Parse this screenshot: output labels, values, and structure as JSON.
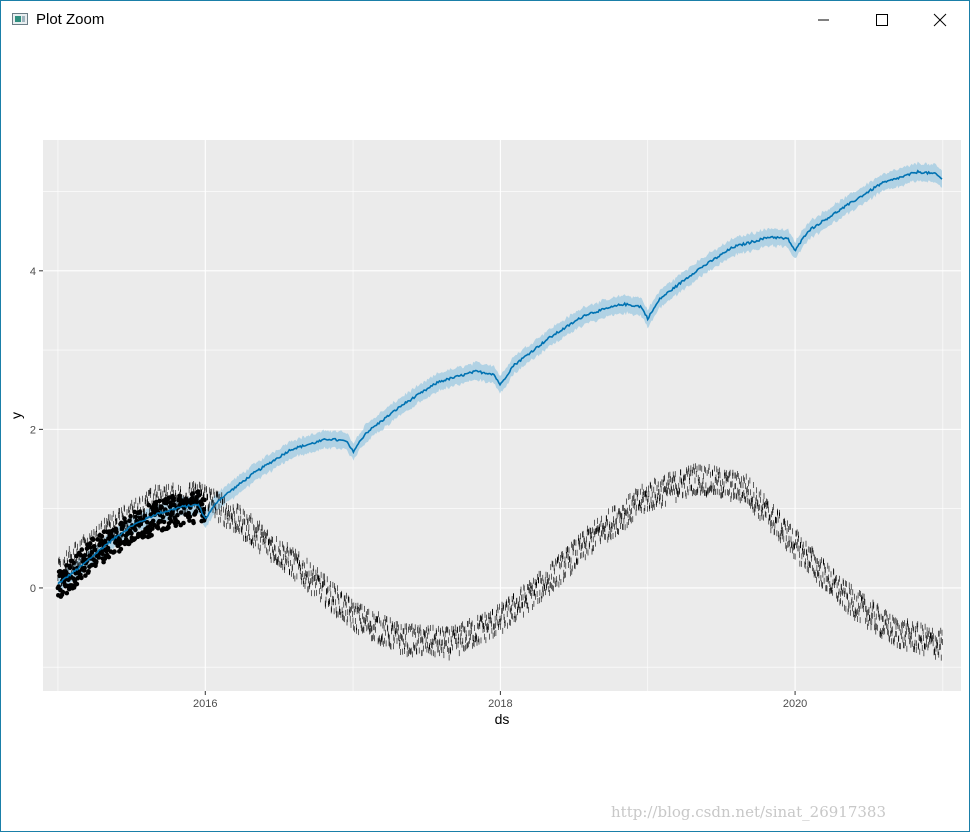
{
  "window": {
    "title": "Plot Zoom",
    "icons": {
      "app": "plot-window-icon",
      "minimize": "minimize-icon",
      "maximize": "maximize-icon",
      "close": "close-icon"
    }
  },
  "watermark": "http://blog.csdn.net/sinat_26917383",
  "colors": {
    "panel": "#ebebeb",
    "grid": "#ffffff",
    "forecast_line": "#0072b2",
    "interval_band": "#9ecae1",
    "points": "#000000",
    "axis_text": "#4d4d4d"
  },
  "chart_data": {
    "type": "line",
    "title": "",
    "xlabel": "ds",
    "ylabel": "y",
    "x_ticks": [
      "2016",
      "2018",
      "2020"
    ],
    "y_ticks": [
      "0",
      "2",
      "4"
    ],
    "xlim": [
      "2014-11-25",
      "2021-02-15"
    ],
    "ylim": [
      -1.3,
      5.65
    ],
    "grid": true,
    "legend": "none",
    "series": [
      {
        "kind": "forecast_line_with_interval",
        "interval_halfwidth": 0.11,
        "points": [
          [
            "2015-01-01",
            0.05
          ],
          [
            "2015-03-01",
            0.28
          ],
          [
            "2015-05-01",
            0.55
          ],
          [
            "2015-07-01",
            0.78
          ],
          [
            "2015-09-01",
            0.93
          ],
          [
            "2015-11-01",
            1.02
          ],
          [
            "2015-12-15",
            1.05
          ],
          [
            "2016-01-01",
            0.87
          ],
          [
            "2016-02-01",
            1.1
          ],
          [
            "2016-05-01",
            1.45
          ],
          [
            "2016-08-01",
            1.75
          ],
          [
            "2016-11-01",
            1.88
          ],
          [
            "2016-12-15",
            1.85
          ],
          [
            "2017-01-01",
            1.72
          ],
          [
            "2017-02-01",
            1.95
          ],
          [
            "2017-05-01",
            2.3
          ],
          [
            "2017-08-01",
            2.6
          ],
          [
            "2017-11-01",
            2.73
          ],
          [
            "2017-12-15",
            2.7
          ],
          [
            "2018-01-01",
            2.56
          ],
          [
            "2018-02-01",
            2.8
          ],
          [
            "2018-05-01",
            3.15
          ],
          [
            "2018-08-01",
            3.45
          ],
          [
            "2018-11-01",
            3.58
          ],
          [
            "2018-12-15",
            3.55
          ],
          [
            "2019-01-01",
            3.4
          ],
          [
            "2019-02-01",
            3.65
          ],
          [
            "2019-05-01",
            4.0
          ],
          [
            "2019-08-01",
            4.3
          ],
          [
            "2019-11-01",
            4.43
          ],
          [
            "2019-12-15",
            4.4
          ],
          [
            "2020-01-01",
            4.25
          ],
          [
            "2020-02-01",
            4.5
          ],
          [
            "2020-05-01",
            4.8
          ],
          [
            "2020-08-01",
            5.1
          ],
          [
            "2020-11-01",
            5.25
          ],
          [
            "2020-12-15",
            5.22
          ],
          [
            "2020-12-31",
            5.15
          ]
        ]
      },
      {
        "kind": "observed_points",
        "x_range": [
          "2015-01-01",
          "2015-12-31"
        ],
        "trend": [
          [
            "2015-01-01",
            0.0
          ],
          [
            "2015-04-01",
            0.45
          ],
          [
            "2015-07-01",
            0.75
          ],
          [
            "2015-10-01",
            0.95
          ],
          [
            "2015-12-31",
            1.05
          ]
        ],
        "spread": 0.2,
        "count": 365
      },
      {
        "kind": "tick_marks",
        "x_range": [
          "2015-01-01",
          "2020-12-31"
        ],
        "curve": [
          [
            "2015-01-01",
            0.2
          ],
          [
            "2015-05-01",
            0.7
          ],
          [
            "2015-09-01",
            1.1
          ],
          [
            "2016-01-01",
            1.15
          ],
          [
            "2016-05-01",
            0.7
          ],
          [
            "2016-09-01",
            0.2
          ],
          [
            "2017-01-01",
            -0.35
          ],
          [
            "2017-05-01",
            -0.65
          ],
          [
            "2017-09-01",
            -0.7
          ],
          [
            "2018-01-01",
            -0.4
          ],
          [
            "2018-05-01",
            0.1
          ],
          [
            "2018-09-01",
            0.7
          ],
          [
            "2019-01-01",
            1.15
          ],
          [
            "2019-05-01",
            1.38
          ],
          [
            "2019-09-01",
            1.25
          ],
          [
            "2020-01-01",
            0.55
          ],
          [
            "2020-05-01",
            -0.1
          ],
          [
            "2020-09-01",
            -0.55
          ],
          [
            "2020-12-31",
            -0.72
          ]
        ],
        "noise": 0.18
      }
    ]
  }
}
